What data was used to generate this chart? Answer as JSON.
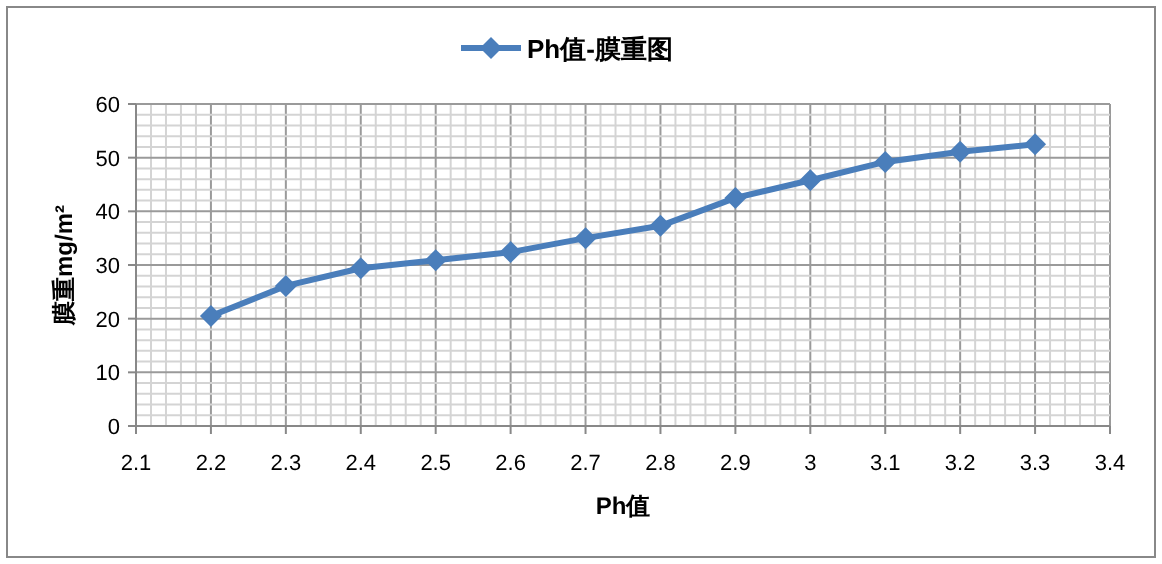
{
  "chart_data": {
    "type": "line",
    "xlabel": "Ph值",
    "ylabel": "膜重mg/m²",
    "x": [
      2.2,
      2.3,
      2.4,
      2.5,
      2.6,
      2.7,
      2.8,
      2.9,
      3.0,
      3.1,
      3.2,
      3.3
    ],
    "series": [
      {
        "name": "Ph值-膜重图",
        "color": "#4a7ebb",
        "values": [
          20.5,
          26.1,
          29.4,
          30.9,
          32.4,
          35.0,
          37.3,
          42.5,
          45.8,
          49.2,
          51.1,
          52.5
        ]
      }
    ],
    "xlim": [
      2.1,
      3.4
    ],
    "xticks": [
      2.1,
      2.2,
      2.3,
      2.4,
      2.5,
      2.6,
      2.7,
      2.8,
      2.9,
      {
        "value": 3.0,
        "label": "3"
      },
      3.1,
      3.2,
      3.3,
      3.4
    ],
    "ylim": [
      0,
      60
    ],
    "yticks": [
      0,
      10,
      20,
      30,
      40,
      50,
      60
    ],
    "grid": true,
    "legend": "top",
    "marker": "diamond",
    "line_style": "solid"
  }
}
